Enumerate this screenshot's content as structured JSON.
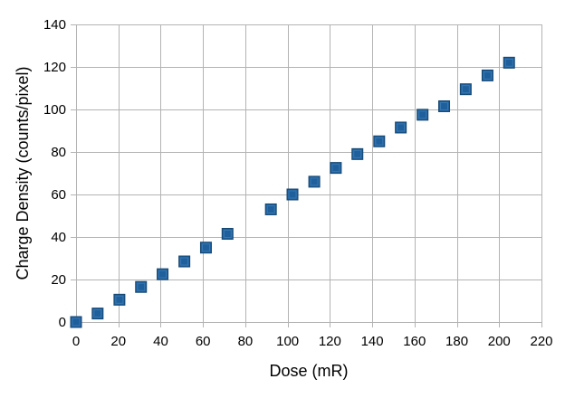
{
  "chart_data": {
    "type": "scatter",
    "title": "",
    "xlabel": "Dose (mR)",
    "ylabel": "Charge Density (counts/pixel)",
    "xlim": [
      0,
      220
    ],
    "ylim": [
      0,
      140
    ],
    "x_ticks": [
      0,
      20,
      40,
      60,
      80,
      100,
      120,
      140,
      160,
      180,
      200,
      220
    ],
    "y_ticks": [
      0,
      20,
      40,
      60,
      80,
      100,
      120,
      140
    ],
    "grid": true,
    "legend": "none",
    "marker": "square",
    "marker_color": "#1f5f9c",
    "series": [
      {
        "x": [
          0,
          10.2,
          20.5,
          30.7,
          40.9,
          51.2,
          61.4,
          71.6,
          92.1,
          102.3,
          112.6,
          122.8,
          133,
          143.3,
          153.5,
          163.8,
          174,
          184.2,
          194.5,
          204.7
        ],
        "y": [
          0,
          4,
          10.5,
          16.5,
          22.5,
          28.5,
          35,
          41.5,
          53,
          60,
          66,
          72.5,
          79,
          85,
          91.5,
          97.5,
          101.5,
          109.5,
          116,
          122
        ]
      }
    ]
  }
}
